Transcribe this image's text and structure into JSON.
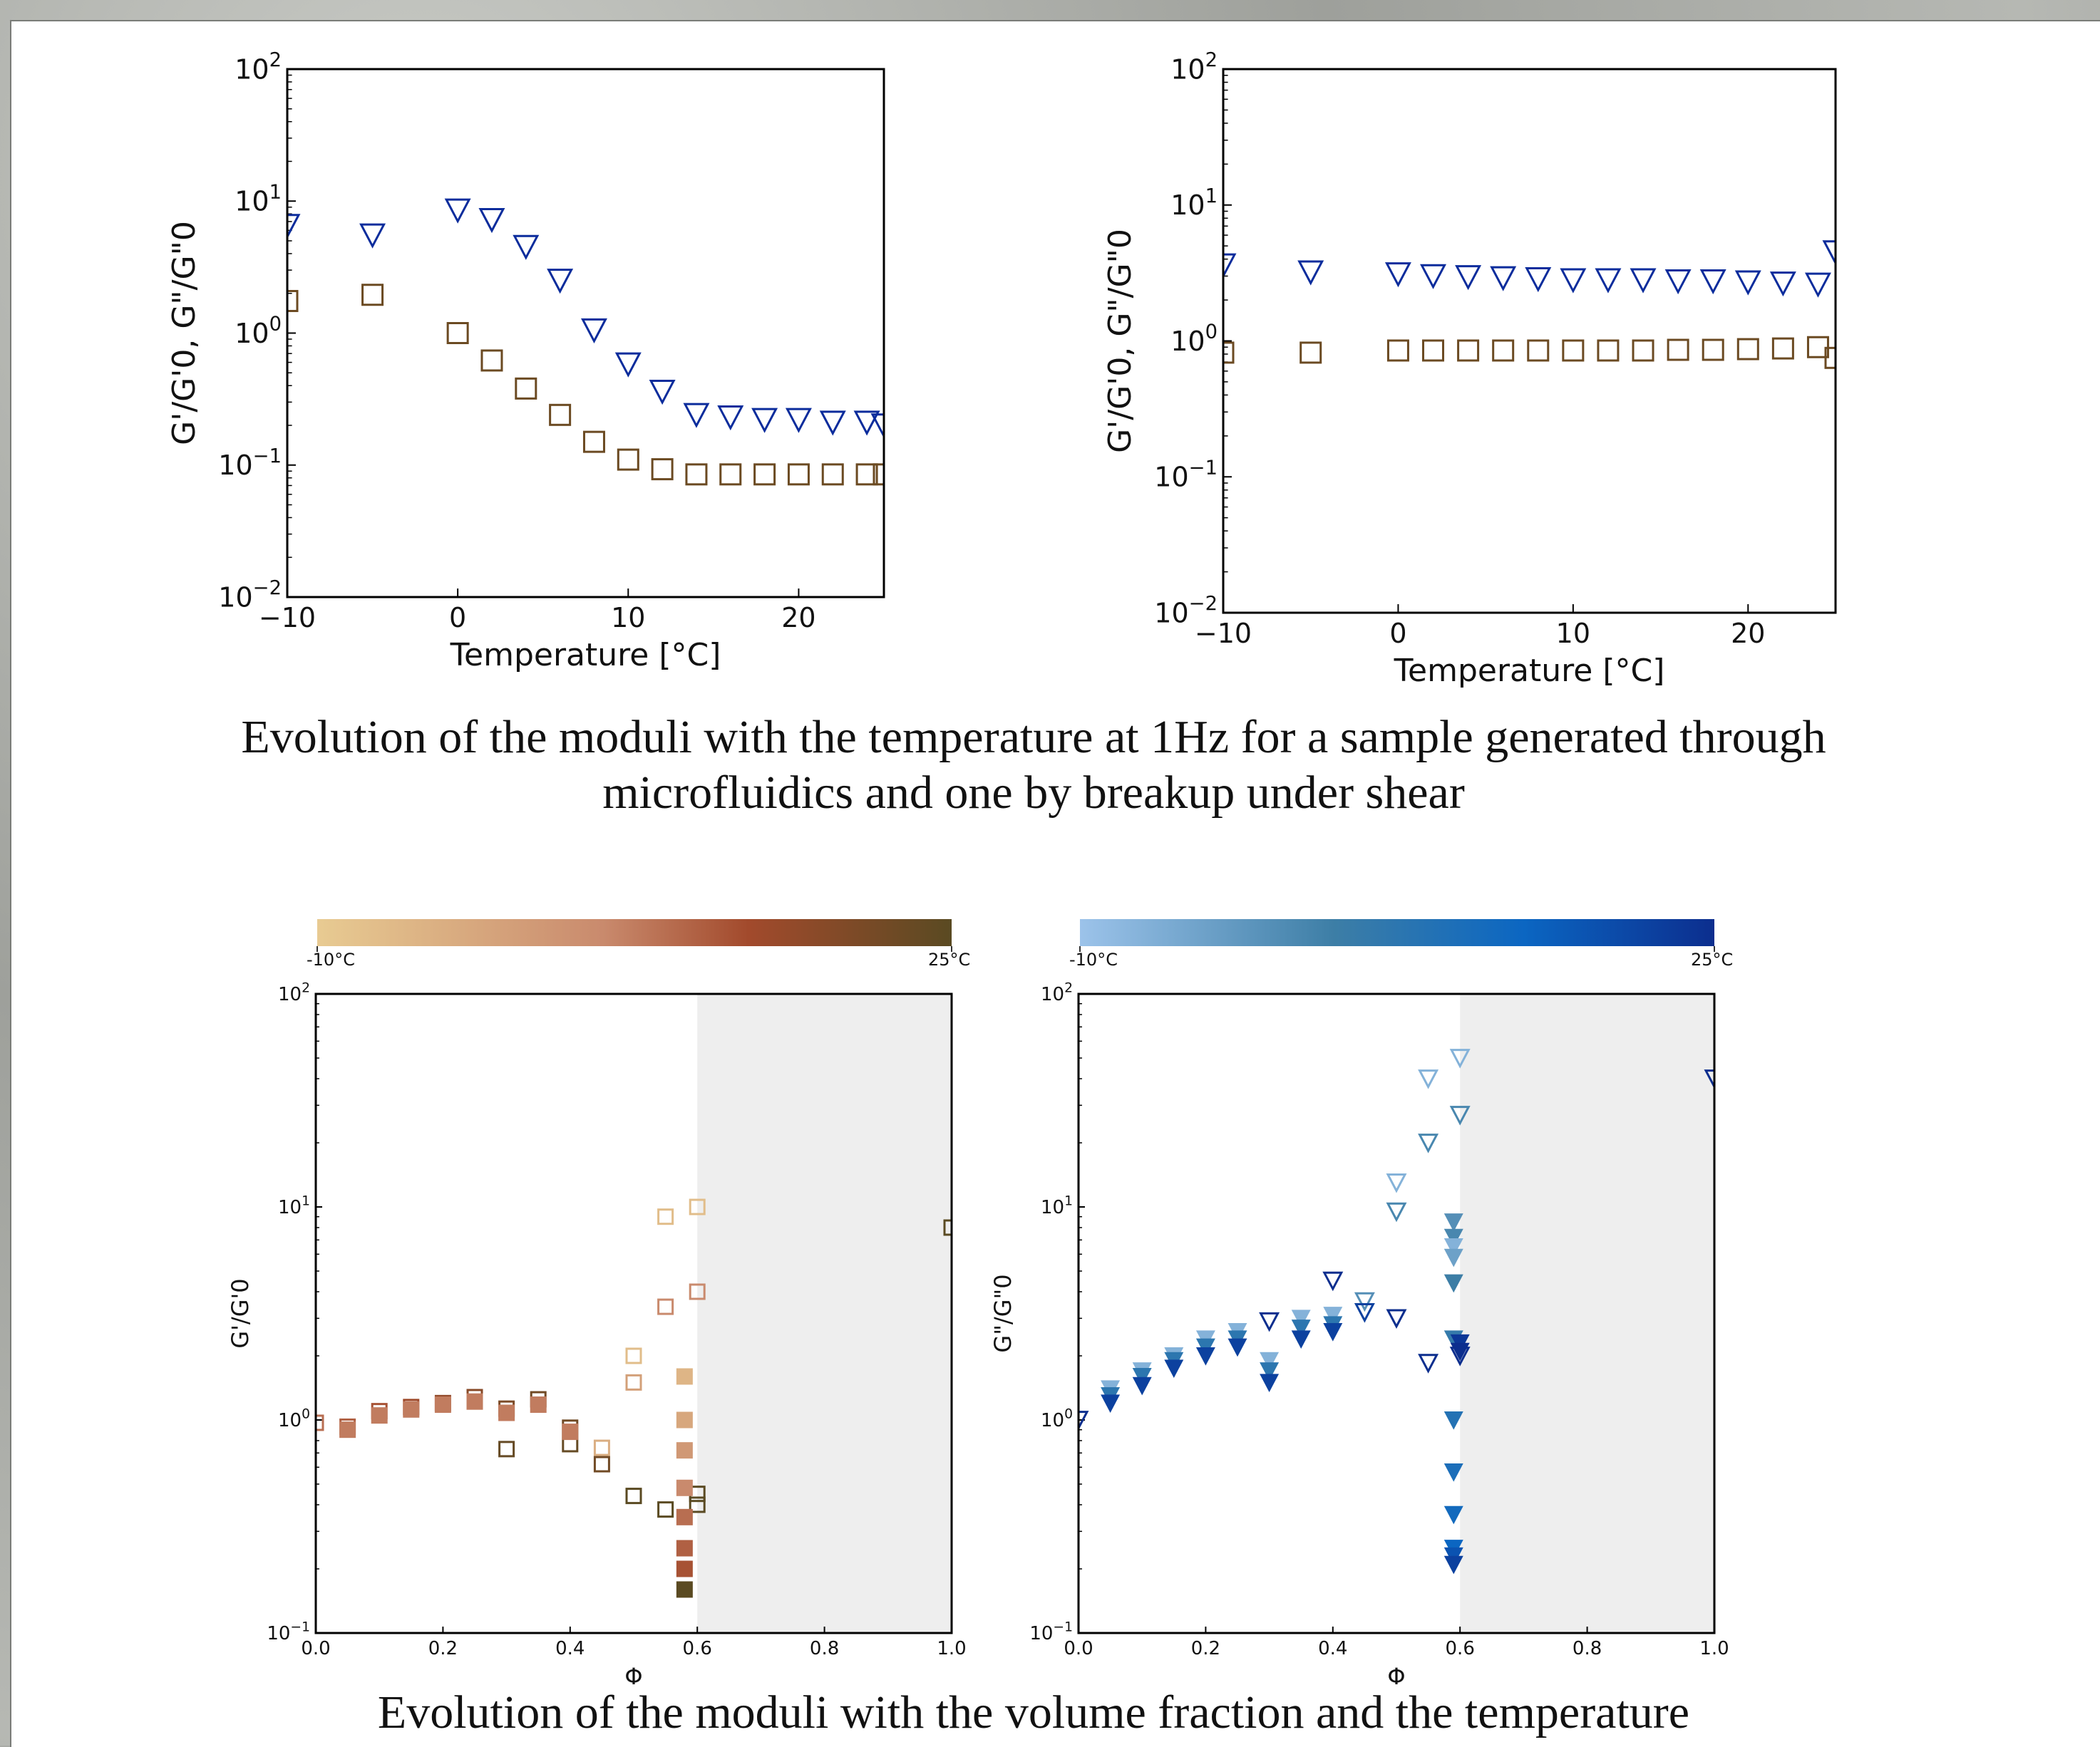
{
  "captions": {
    "top_line1": "Evolution of the moduli with the temperature at 1Hz for a sample generated through",
    "top_line2": "microfluidics and one by breakup under shear",
    "bottom": "Evolution of the moduli with the volume fraction and the temperature"
  },
  "colorbars": {
    "left": {
      "min_label": "-10°C",
      "max_label": "25°C",
      "colors": [
        "#e8cb92",
        "#c98a6d",
        "#a24a2c",
        "#5a4a22"
      ]
    },
    "right": {
      "min_label": "-10°C",
      "max_label": "25°C",
      "colors": [
        "#9cc3ea",
        "#3d7ea6",
        "#0b66c2",
        "#0c2e8e"
      ]
    }
  },
  "colors": {
    "storage": "#6b4a22",
    "loss": "#0b2c9c",
    "shade": "#eeeeee"
  },
  "chart_data": [
    {
      "type": "scatter",
      "xlabel": "Temperature [°C]",
      "ylabel": "G'/G'0, G\"/G\"0",
      "ylog": true,
      "xlim": [
        -10,
        25
      ],
      "ylim": [
        0.01,
        100
      ],
      "xticks": [
        -10,
        0,
        10,
        20
      ],
      "yticks": [
        0.01,
        0.1,
        1,
        10,
        100
      ],
      "series": [
        {
          "marker": "triangle-down",
          "color": "#0b2c9c",
          "points": [
            [
              -10,
              6.5
            ],
            [
              -5,
              5.5
            ],
            [
              0,
              8.5
            ],
            [
              2,
              7.2
            ],
            [
              4,
              4.5
            ],
            [
              6,
              2.5
            ],
            [
              8,
              1.05
            ],
            [
              10,
              0.58
            ],
            [
              12,
              0.36
            ],
            [
              14,
              0.24
            ],
            [
              16,
              0.23
            ],
            [
              18,
              0.22
            ],
            [
              20,
              0.22
            ],
            [
              22,
              0.21
            ],
            [
              24,
              0.21
            ],
            [
              25,
              0.2
            ]
          ]
        },
        {
          "marker": "square",
          "color": "#6b4a22",
          "points": [
            [
              -10,
              1.75
            ],
            [
              -5,
              1.95
            ],
            [
              0,
              1.0
            ],
            [
              2,
              0.62
            ],
            [
              4,
              0.38
            ],
            [
              6,
              0.24
            ],
            [
              8,
              0.15
            ],
            [
              10,
              0.11
            ],
            [
              12,
              0.093
            ],
            [
              14,
              0.085
            ],
            [
              16,
              0.085
            ],
            [
              18,
              0.085
            ],
            [
              20,
              0.085
            ],
            [
              22,
              0.085
            ],
            [
              24,
              0.085
            ],
            [
              25,
              0.085
            ]
          ]
        }
      ]
    },
    {
      "type": "scatter",
      "xlabel": "Temperature [°C]",
      "ylabel": "G'/G'0, G\"/G\"0",
      "ylog": true,
      "xlim": [
        -10,
        25
      ],
      "ylim": [
        0.01,
        100
      ],
      "xticks": [
        -10,
        0,
        10,
        20
      ],
      "yticks": [
        0.01,
        0.1,
        1,
        10,
        100
      ],
      "series": [
        {
          "marker": "triangle-down",
          "color": "#0b2c9c",
          "points": [
            [
              -10,
              3.6
            ],
            [
              -5,
              3.2
            ],
            [
              0,
              3.1
            ],
            [
              2,
              3.0
            ],
            [
              4,
              2.95
            ],
            [
              6,
              2.9
            ],
            [
              8,
              2.85
            ],
            [
              10,
              2.8
            ],
            [
              12,
              2.8
            ],
            [
              14,
              2.8
            ],
            [
              16,
              2.75
            ],
            [
              18,
              2.75
            ],
            [
              20,
              2.7
            ],
            [
              22,
              2.65
            ],
            [
              24,
              2.6
            ],
            [
              25,
              4.5
            ]
          ]
        },
        {
          "marker": "square",
          "color": "#6b4a22",
          "points": [
            [
              -10,
              0.82
            ],
            [
              -5,
              0.82
            ],
            [
              0,
              0.85
            ],
            [
              2,
              0.85
            ],
            [
              4,
              0.85
            ],
            [
              6,
              0.85
            ],
            [
              8,
              0.85
            ],
            [
              10,
              0.85
            ],
            [
              12,
              0.85
            ],
            [
              14,
              0.85
            ],
            [
              16,
              0.86
            ],
            [
              18,
              0.86
            ],
            [
              20,
              0.87
            ],
            [
              22,
              0.88
            ],
            [
              24,
              0.9
            ],
            [
              25,
              0.75
            ]
          ]
        }
      ]
    },
    {
      "type": "scatter",
      "xlabel": "Φ",
      "ylabel": "G'/G'0",
      "ylog": true,
      "xlim": [
        0.0,
        1.0
      ],
      "ylim": [
        0.1,
        100
      ],
      "xticks": [
        0.0,
        0.2,
        0.4,
        0.6,
        0.8,
        1.0
      ],
      "yticks": [
        0.1,
        1,
        10,
        100
      ],
      "shaded_region": [
        0.6,
        1.0
      ],
      "colormap": "left",
      "filled": [
        [
          0.05,
          0.9,
          0.5
        ],
        [
          0.1,
          1.05,
          0.5
        ],
        [
          0.15,
          1.12,
          0.5
        ],
        [
          0.2,
          1.18,
          0.5
        ],
        [
          0.25,
          1.22,
          0.5
        ],
        [
          0.3,
          1.08,
          0.5
        ],
        [
          0.35,
          1.18,
          0.5
        ],
        [
          0.4,
          0.88,
          0.5
        ],
        [
          0.58,
          1.6,
          0.15
        ],
        [
          0.58,
          1.0,
          0.25
        ],
        [
          0.58,
          0.72,
          0.35
        ],
        [
          0.58,
          0.48,
          0.45
        ],
        [
          0.58,
          0.35,
          0.55
        ],
        [
          0.58,
          0.25,
          0.6
        ],
        [
          0.58,
          0.2,
          0.65
        ],
        [
          0.58,
          0.16,
          1.0
        ]
      ],
      "hollow": [
        [
          0.0,
          0.97,
          0.55
        ],
        [
          0.05,
          0.93,
          0.6
        ],
        [
          0.1,
          1.1,
          0.65
        ],
        [
          0.15,
          1.15,
          0.7
        ],
        [
          0.2,
          1.2,
          0.75
        ],
        [
          0.25,
          1.28,
          0.8
        ],
        [
          0.3,
          1.13,
          0.85
        ],
        [
          0.35,
          1.25,
          0.9
        ],
        [
          0.4,
          0.92,
          0.9
        ],
        [
          0.3,
          0.73,
          0.95
        ],
        [
          0.4,
          0.77,
          0.95
        ],
        [
          0.45,
          0.74,
          0.2
        ],
        [
          0.45,
          0.62,
          0.9
        ],
        [
          0.5,
          2.0,
          0.1
        ],
        [
          0.5,
          1.5,
          0.3
        ],
        [
          0.5,
          0.44,
          1.0
        ],
        [
          0.55,
          9.0,
          0.1
        ],
        [
          0.55,
          3.4,
          0.45
        ],
        [
          0.55,
          0.38,
          1.0
        ],
        [
          0.6,
          10.0,
          0.1
        ],
        [
          0.6,
          4.0,
          0.45
        ],
        [
          0.6,
          0.45,
          1.0
        ],
        [
          0.6,
          0.4,
          1.0
        ],
        [
          1.0,
          8.0,
          1.0
        ]
      ]
    },
    {
      "type": "scatter",
      "xlabel": "Φ",
      "ylabel": "G\"/G\"0",
      "ylog": true,
      "xlim": [
        0.0,
        1.0
      ],
      "ylim": [
        0.1,
        100
      ],
      "xticks": [
        0.0,
        0.2,
        0.4,
        0.6,
        0.8,
        1.0
      ],
      "yticks": [
        0.1,
        1,
        10,
        100
      ],
      "shaded_region": [
        0.6,
        1.0
      ],
      "colormap": "right",
      "filled": [
        [
          0.05,
          1.4,
          0.1
        ],
        [
          0.05,
          1.3,
          0.5
        ],
        [
          0.05,
          1.2,
          0.9
        ],
        [
          0.1,
          1.7,
          0.1
        ],
        [
          0.1,
          1.6,
          0.5
        ],
        [
          0.1,
          1.45,
          0.9
        ],
        [
          0.15,
          2.0,
          0.1
        ],
        [
          0.15,
          1.9,
          0.5
        ],
        [
          0.15,
          1.75,
          0.9
        ],
        [
          0.2,
          2.4,
          0.1
        ],
        [
          0.2,
          2.2,
          0.5
        ],
        [
          0.2,
          2.0,
          0.9
        ],
        [
          0.25,
          2.6,
          0.1
        ],
        [
          0.25,
          2.4,
          0.5
        ],
        [
          0.25,
          2.2,
          0.9
        ],
        [
          0.3,
          1.9,
          0.1
        ],
        [
          0.3,
          1.7,
          0.5
        ],
        [
          0.3,
          1.5,
          0.9
        ],
        [
          0.35,
          3.0,
          0.1
        ],
        [
          0.35,
          2.7,
          0.5
        ],
        [
          0.35,
          2.4,
          0.9
        ],
        [
          0.4,
          3.1,
          0.1
        ],
        [
          0.4,
          2.8,
          0.5
        ],
        [
          0.4,
          2.6,
          0.9
        ],
        [
          0.59,
          8.5,
          0.3
        ],
        [
          0.59,
          7.2,
          0.35
        ],
        [
          0.59,
          6.5,
          0.1
        ],
        [
          0.59,
          5.8,
          0.2
        ],
        [
          0.59,
          4.4,
          0.4
        ],
        [
          0.59,
          2.4,
          0.45
        ],
        [
          0.59,
          1.0,
          0.55
        ],
        [
          0.59,
          0.57,
          0.6
        ],
        [
          0.59,
          0.36,
          0.65
        ],
        [
          0.59,
          0.25,
          0.7
        ],
        [
          0.59,
          0.23,
          0.8
        ],
        [
          0.59,
          0.21,
          0.9
        ],
        [
          0.6,
          2.3,
          0.95
        ],
        [
          0.6,
          2.1,
          1.0
        ]
      ],
      "hollow": [
        [
          0.0,
          1.0,
          1.0
        ],
        [
          0.3,
          2.9,
          1.0
        ],
        [
          0.4,
          4.5,
          1.0
        ],
        [
          0.45,
          3.6,
          0.3
        ],
        [
          0.45,
          3.2,
          0.9
        ],
        [
          0.5,
          13.0,
          0.1
        ],
        [
          0.5,
          9.5,
          0.35
        ],
        [
          0.5,
          3.0,
          1.0
        ],
        [
          0.55,
          40.0,
          0.1
        ],
        [
          0.55,
          20.0,
          0.35
        ],
        [
          0.55,
          1.85,
          1.0
        ],
        [
          0.6,
          50.0,
          0.1
        ],
        [
          0.6,
          27.0,
          0.35
        ],
        [
          0.6,
          2.0,
          1.0
        ],
        [
          1.0,
          40.0,
          1.0
        ]
      ]
    }
  ]
}
